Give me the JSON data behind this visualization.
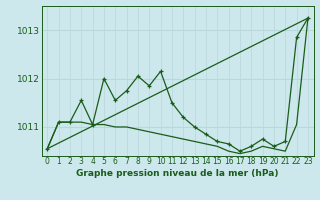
{
  "title": "Graphe pression niveau de la mer (hPa)",
  "bg_color": "#cce8ec",
  "grid_color_h": "#b8d8dc",
  "grid_color_v": "#b8d8dc",
  "line_color": "#1a5c1a",
  "xlim": [
    -0.5,
    23.5
  ],
  "ylim": [
    1010.4,
    1013.5
  ],
  "yticks": [
    1011,
    1012,
    1013
  ],
  "xticks": [
    0,
    1,
    2,
    3,
    4,
    5,
    6,
    7,
    8,
    9,
    10,
    11,
    12,
    13,
    14,
    15,
    16,
    17,
    18,
    19,
    20,
    21,
    22,
    23
  ],
  "series1_x": [
    0,
    1,
    2,
    3,
    4,
    5,
    6,
    7,
    8,
    9,
    10,
    11,
    12,
    13,
    14,
    15,
    16,
    17,
    18,
    19,
    20,
    21,
    22,
    23
  ],
  "series1_y": [
    1010.55,
    1011.1,
    1011.1,
    1011.55,
    1011.05,
    1012.0,
    1011.55,
    1011.75,
    1012.05,
    1011.85,
    1012.15,
    1011.5,
    1011.2,
    1011.0,
    1010.85,
    1010.7,
    1010.65,
    1010.5,
    1010.6,
    1010.75,
    1010.6,
    1010.7,
    1012.85,
    1013.25
  ],
  "series2_x": [
    0,
    23
  ],
  "series2_y": [
    1010.55,
    1013.25
  ],
  "series3_x": [
    0,
    1,
    2,
    3,
    4,
    5,
    6,
    7,
    8,
    9,
    10,
    11,
    12,
    13,
    14,
    15,
    16,
    17,
    18,
    19,
    20,
    21,
    22,
    23
  ],
  "series3_y": [
    1010.55,
    1011.1,
    1011.1,
    1011.1,
    1011.05,
    1011.05,
    1011.0,
    1011.0,
    1010.95,
    1010.9,
    1010.85,
    1010.8,
    1010.75,
    1010.7,
    1010.65,
    1010.6,
    1010.5,
    1010.45,
    1010.5,
    1010.6,
    1010.55,
    1010.5,
    1011.05,
    1013.25
  ],
  "ylabel_fontsize": 6.5,
  "xlabel_fontsize": 6.5,
  "tick_fontsize": 5.5
}
